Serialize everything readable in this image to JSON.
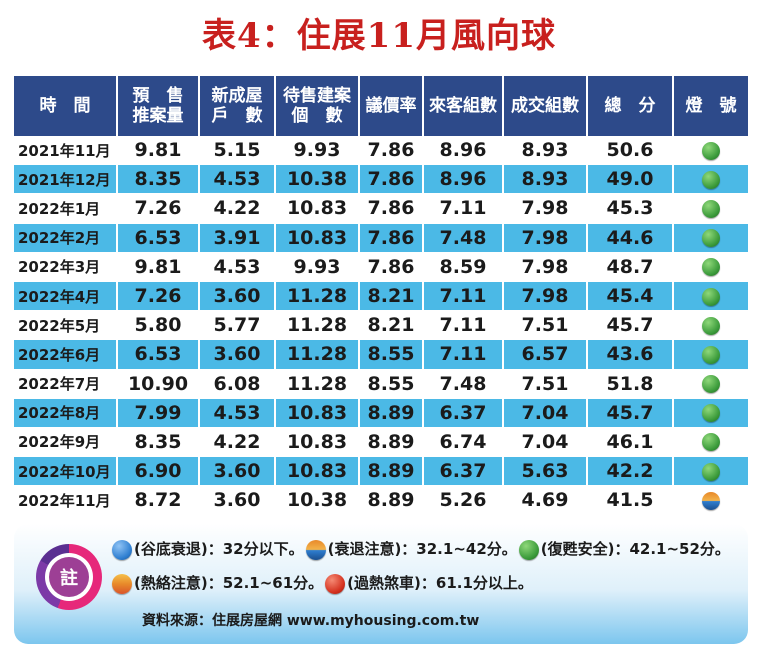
{
  "title": {
    "prefix": "表4：",
    "main": "住展11月風向球"
  },
  "colors": {
    "header_bg": "#2d4a8a",
    "row_alt": "#4bb9e6",
    "title_red": "#c8201e",
    "light_blue": "#2f7fd1",
    "light_yellow_blue": "#e8892a",
    "light_green": "#3a9a3a",
    "light_yellow_red": "#e88a2a",
    "light_red": "#d4301e"
  },
  "table": {
    "headers": [
      "時　間",
      "預　售\n推案量",
      "新成屋\n戶　數",
      "待售建案\n個　數",
      "議價率",
      "來客組數",
      "成交組數",
      "總　分",
      "燈　號"
    ],
    "rows": [
      {
        "time": "2021年11月",
        "presale": "9.81",
        "new": "5.15",
        "pending": "9.93",
        "bargain": "7.86",
        "visitors": "8.96",
        "deals": "8.93",
        "total": "50.6",
        "light": "green"
      },
      {
        "time": "2021年12月",
        "presale": "8.35",
        "new": "4.53",
        "pending": "10.38",
        "bargain": "7.86",
        "visitors": "8.96",
        "deals": "8.93",
        "total": "49.0",
        "light": "green"
      },
      {
        "time": "2022年1月",
        "presale": "7.26",
        "new": "4.22",
        "pending": "10.83",
        "bargain": "7.86",
        "visitors": "7.11",
        "deals": "7.98",
        "total": "45.3",
        "light": "green"
      },
      {
        "time": "2022年2月",
        "presale": "6.53",
        "new": "3.91",
        "pending": "10.83",
        "bargain": "7.86",
        "visitors": "7.48",
        "deals": "7.98",
        "total": "44.6",
        "light": "green"
      },
      {
        "time": "2022年3月",
        "presale": "9.81",
        "new": "4.53",
        "pending": "9.93",
        "bargain": "7.86",
        "visitors": "8.59",
        "deals": "7.98",
        "total": "48.7",
        "light": "green"
      },
      {
        "time": "2022年4月",
        "presale": "7.26",
        "new": "3.60",
        "pending": "11.28",
        "bargain": "8.21",
        "visitors": "7.11",
        "deals": "7.98",
        "total": "45.4",
        "light": "green"
      },
      {
        "time": "2022年5月",
        "presale": "5.80",
        "new": "5.77",
        "pending": "11.28",
        "bargain": "8.21",
        "visitors": "7.11",
        "deals": "7.51",
        "total": "45.7",
        "light": "green"
      },
      {
        "time": "2022年6月",
        "presale": "6.53",
        "new": "3.60",
        "pending": "11.28",
        "bargain": "8.55",
        "visitors": "7.11",
        "deals": "6.57",
        "total": "43.6",
        "light": "green"
      },
      {
        "time": "2022年7月",
        "presale": "10.90",
        "new": "6.08",
        "pending": "11.28",
        "bargain": "8.55",
        "visitors": "7.48",
        "deals": "7.51",
        "total": "51.8",
        "light": "green"
      },
      {
        "time": "2022年8月",
        "presale": "7.99",
        "new": "4.53",
        "pending": "10.83",
        "bargain": "8.89",
        "visitors": "6.37",
        "deals": "7.04",
        "total": "45.7",
        "light": "green"
      },
      {
        "time": "2022年9月",
        "presale": "8.35",
        "new": "4.22",
        "pending": "10.83",
        "bargain": "8.89",
        "visitors": "6.74",
        "deals": "7.04",
        "total": "46.1",
        "light": "green"
      },
      {
        "time": "2022年10月",
        "presale": "6.90",
        "new": "3.60",
        "pending": "10.83",
        "bargain": "8.89",
        "visitors": "6.37",
        "deals": "5.63",
        "total": "42.2",
        "light": "green"
      },
      {
        "time": "2022年11月",
        "presale": "8.72",
        "new": "3.60",
        "pending": "10.38",
        "bargain": "8.89",
        "visitors": "5.26",
        "deals": "4.69",
        "total": "41.5",
        "light": "yellow-blue"
      }
    ]
  },
  "note": {
    "badge": "註",
    "legend_line1": [
      {
        "light": "blue",
        "label": "(谷底衰退)：32分以下。"
      },
      {
        "light": "yellow-blue",
        "label": "(衰退注意)：32.1~42分。"
      },
      {
        "light": "green",
        "label": "(復甦安全)：42.1~52分。"
      }
    ],
    "legend_line2": [
      {
        "light": "yellow-red",
        "label": "(熱絡注意)：52.1~61分。"
      },
      {
        "light": "red",
        "label": "(過熱煞車)：61.1分以上。"
      }
    ],
    "source": "資料來源：住展房屋網 www.myhousing.com.tw"
  }
}
